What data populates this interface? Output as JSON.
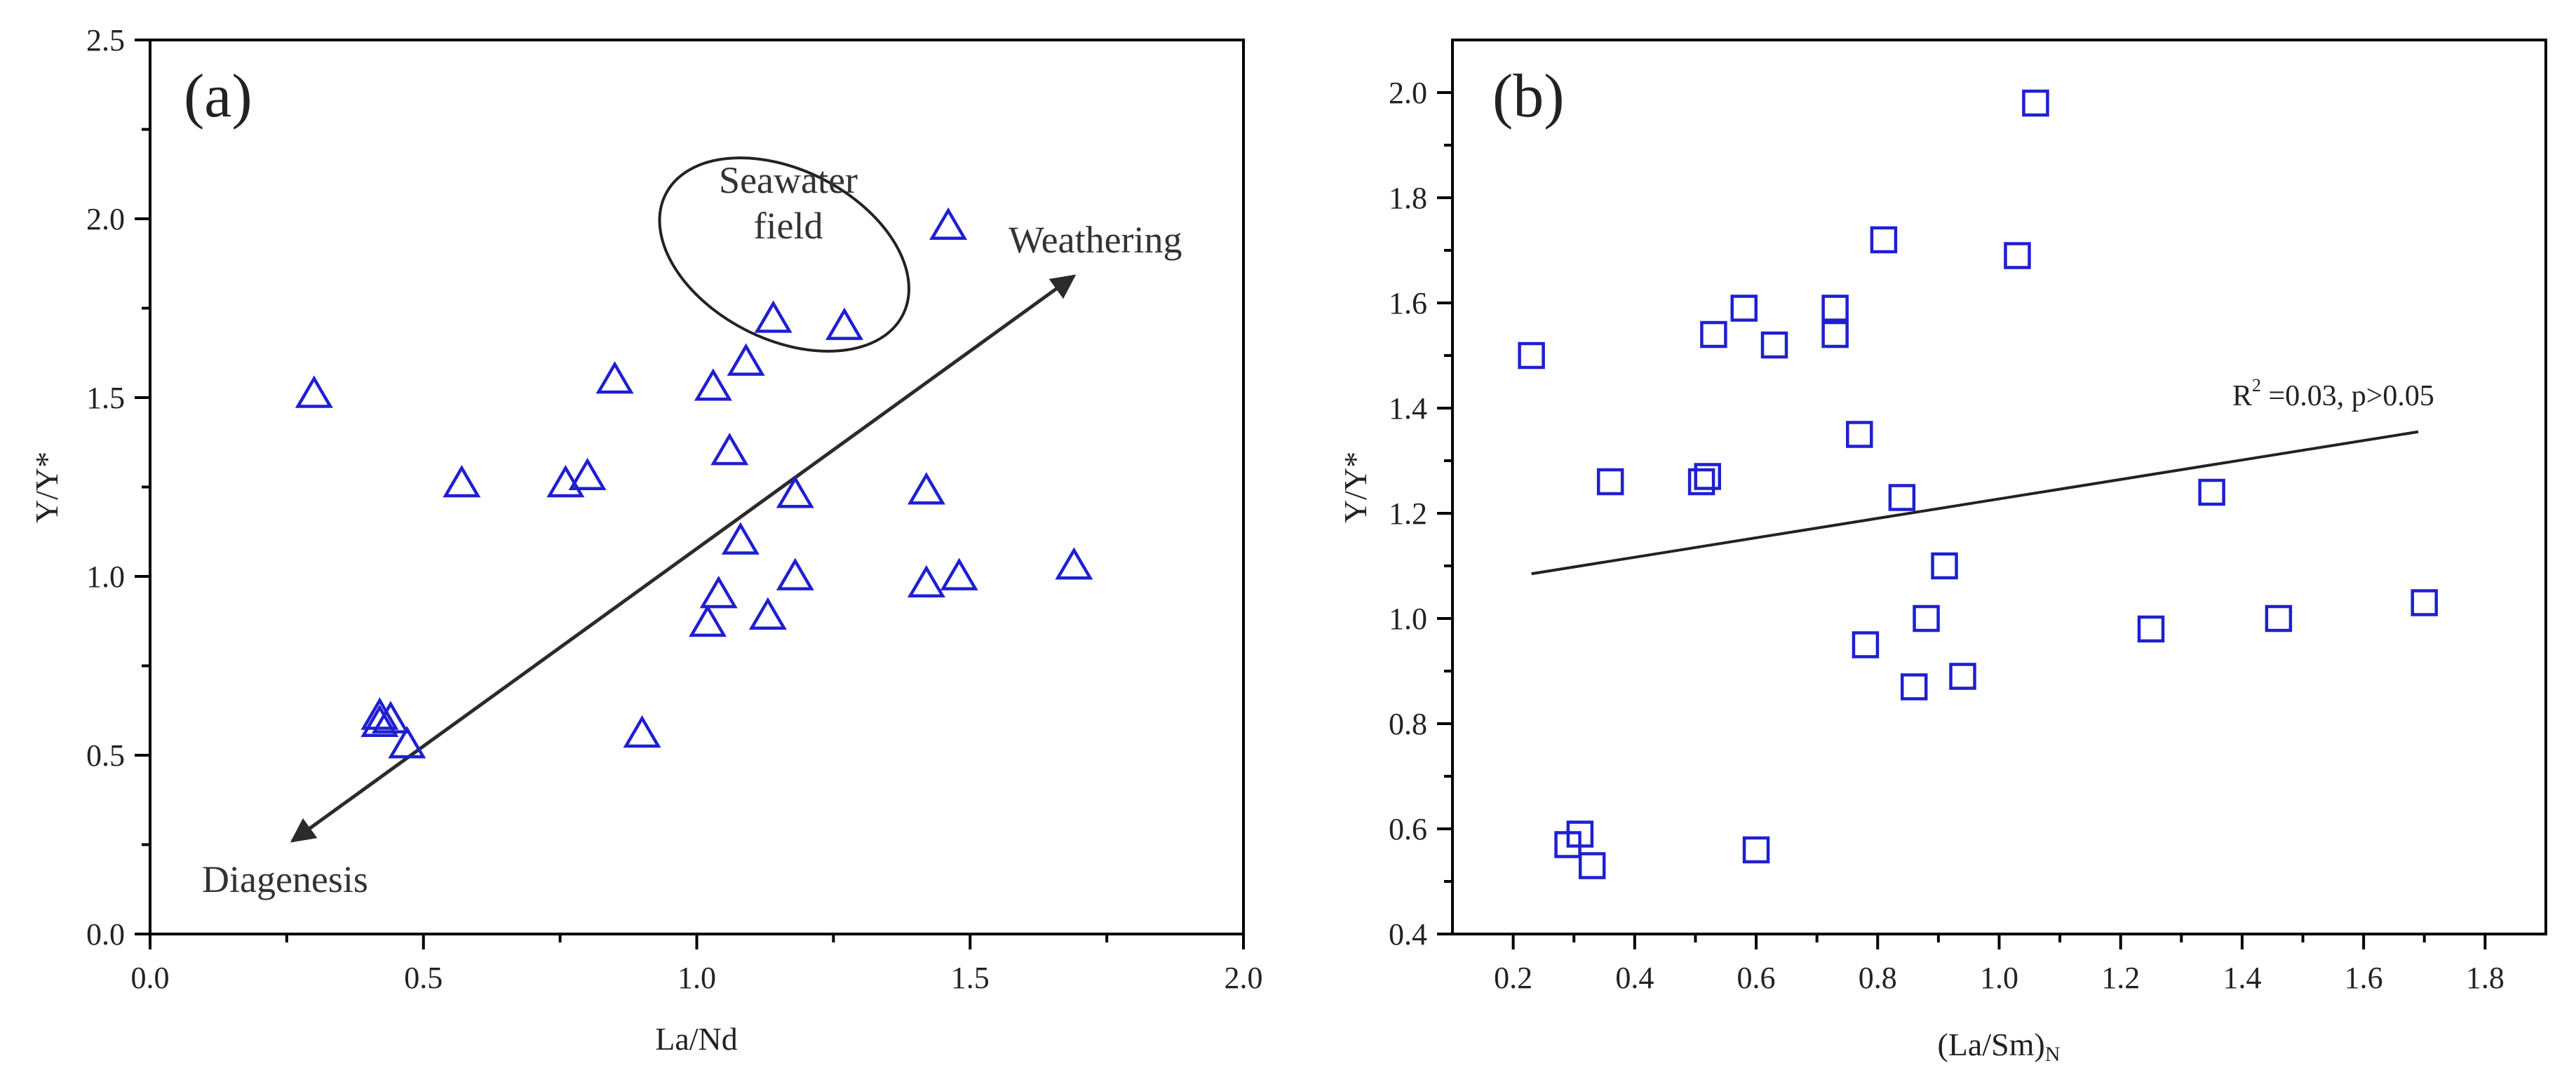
{
  "chart_data": [
    {
      "type": "scatter",
      "panel": "(a)",
      "xlabel": "La/Nd",
      "ylabel": "Y/Y*",
      "xlim": [
        0,
        2
      ],
      "ylim": [
        0,
        2.5
      ],
      "xticks": [
        0.0,
        0.5,
        1.0,
        1.5,
        2.0
      ],
      "xtick_labels": [
        "0.0",
        "0.5",
        "1.0",
        "1.5",
        "2.0"
      ],
      "yticks": [
        0.0,
        0.5,
        1.0,
        1.5,
        2.0,
        2.5
      ],
      "ytick_labels": [
        "0.0",
        "0.5",
        "1.0",
        "1.5",
        "2.0",
        "2.5"
      ],
      "marker": "triangle",
      "color": "#1f1fd1",
      "points": [
        {
          "x": 0.3,
          "y": 1.51
        },
        {
          "x": 0.57,
          "y": 1.26
        },
        {
          "x": 0.76,
          "y": 1.26
        },
        {
          "x": 0.8,
          "y": 1.28
        },
        {
          "x": 0.85,
          "y": 1.55
        },
        {
          "x": 1.03,
          "y": 1.53
        },
        {
          "x": 1.09,
          "y": 1.6
        },
        {
          "x": 1.14,
          "y": 1.72
        },
        {
          "x": 1.27,
          "y": 1.7
        },
        {
          "x": 1.46,
          "y": 1.98
        },
        {
          "x": 1.06,
          "y": 1.35
        },
        {
          "x": 1.18,
          "y": 1.23
        },
        {
          "x": 1.08,
          "y": 1.1
        },
        {
          "x": 1.18,
          "y": 1.0
        },
        {
          "x": 1.04,
          "y": 0.95
        },
        {
          "x": 1.02,
          "y": 0.87
        },
        {
          "x": 1.13,
          "y": 0.89
        },
        {
          "x": 1.42,
          "y": 1.24
        },
        {
          "x": 1.42,
          "y": 0.98
        },
        {
          "x": 1.48,
          "y": 1.0
        },
        {
          "x": 1.69,
          "y": 1.03
        },
        {
          "x": 0.9,
          "y": 0.56
        },
        {
          "x": 0.42,
          "y": 0.59
        },
        {
          "x": 0.42,
          "y": 0.61
        },
        {
          "x": 0.44,
          "y": 0.6
        },
        {
          "x": 0.47,
          "y": 0.53
        }
      ],
      "annotations": {
        "field_line1": "Seawater",
        "field_line2": "field",
        "arrow_end_label": "Weathering",
        "arrow_start_label": "Diagenesis"
      },
      "seawater_field": {
        "cx": 1.16,
        "cy": 1.9,
        "rx": 0.155,
        "ry": 0.6,
        "rotation_deg": 27
      },
      "arrow": {
        "from": [
          0.26,
          0.26
        ],
        "to": [
          1.69,
          1.84
        ]
      }
    },
    {
      "type": "scatter",
      "panel": "(b)",
      "xlabel": "(La/Sm)",
      "xlabel_sub": "N",
      "ylabel": "Y/Y*",
      "xlim": [
        0.1,
        1.9
      ],
      "ylim": [
        0.4,
        2.1
      ],
      "xticks": [
        0.2,
        0.4,
        0.6,
        0.8,
        1.0,
        1.2,
        1.4,
        1.6,
        1.8
      ],
      "xtick_labels": [
        "0.2",
        "0.4",
        "0.6",
        "0.8",
        "1.0",
        "1.2",
        "1.4",
        "1.6",
        "1.8"
      ],
      "yticks": [
        0.4,
        0.6,
        0.8,
        1.0,
        1.2,
        1.4,
        1.6,
        1.8,
        2.0
      ],
      "ytick_labels": [
        "0.4",
        "0.6",
        "0.8",
        "1.0",
        "1.2",
        "1.4",
        "1.6",
        "1.8",
        "2.0"
      ],
      "marker": "square",
      "color": "#1f1fd1",
      "points": [
        {
          "x": 0.23,
          "y": 1.5
        },
        {
          "x": 0.36,
          "y": 1.26
        },
        {
          "x": 0.51,
          "y": 1.26
        },
        {
          "x": 0.52,
          "y": 1.27
        },
        {
          "x": 0.53,
          "y": 1.54
        },
        {
          "x": 0.58,
          "y": 1.59
        },
        {
          "x": 0.63,
          "y": 1.52
        },
        {
          "x": 0.73,
          "y": 1.59
        },
        {
          "x": 0.73,
          "y": 1.54
        },
        {
          "x": 0.77,
          "y": 1.35
        },
        {
          "x": 0.81,
          "y": 1.72
        },
        {
          "x": 0.84,
          "y": 1.23
        },
        {
          "x": 1.03,
          "y": 1.69
        },
        {
          "x": 1.06,
          "y": 1.98
        },
        {
          "x": 0.91,
          "y": 1.1
        },
        {
          "x": 0.88,
          "y": 1.0
        },
        {
          "x": 0.78,
          "y": 0.95
        },
        {
          "x": 0.86,
          "y": 0.87
        },
        {
          "x": 0.94,
          "y": 0.89
        },
        {
          "x": 1.25,
          "y": 0.98
        },
        {
          "x": 1.35,
          "y": 1.24
        },
        {
          "x": 1.46,
          "y": 1.0
        },
        {
          "x": 1.7,
          "y": 1.03
        },
        {
          "x": 0.6,
          "y": 0.56
        },
        {
          "x": 0.31,
          "y": 0.59
        },
        {
          "x": 0.29,
          "y": 0.57
        },
        {
          "x": 0.33,
          "y": 0.53
        }
      ],
      "trendline": {
        "x": [
          0.23,
          1.69
        ],
        "y": [
          1.085,
          1.355
        ]
      },
      "stat_text": {
        "r": "R",
        "sup": "2",
        "rest": " =0.03, p>0.05"
      }
    }
  ]
}
